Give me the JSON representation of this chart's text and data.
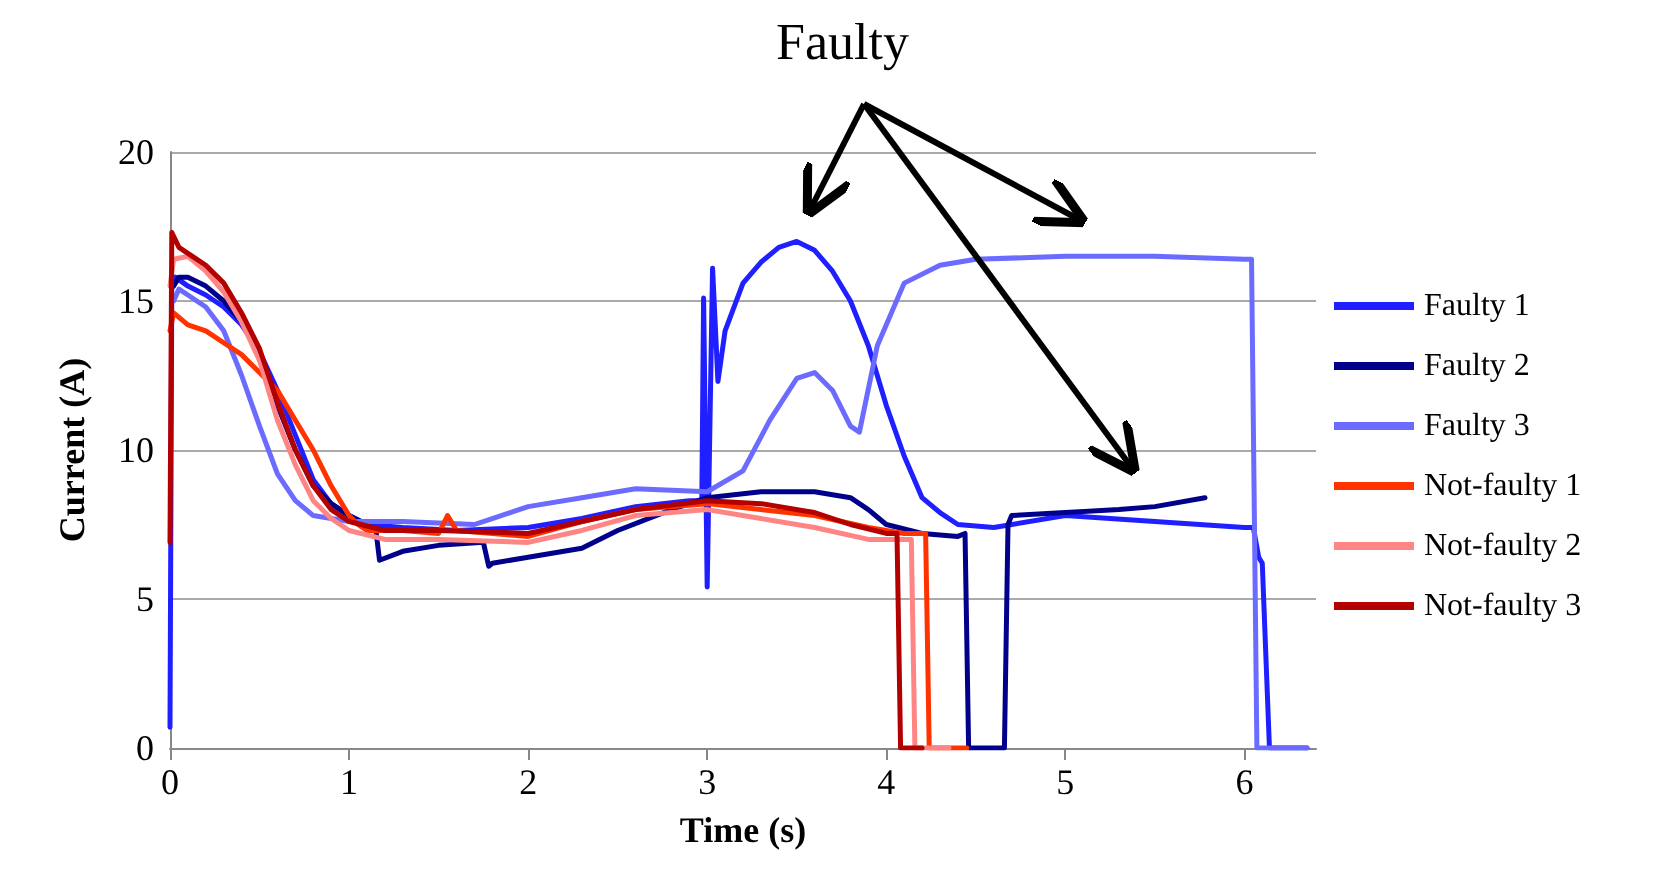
{
  "chart_data": {
    "type": "line",
    "xlabel": "Time (s)",
    "ylabel": "Current (A)",
    "annotations": [
      "Faulty"
    ],
    "xlim": [
      0,
      6.4
    ],
    "xticks": [
      0,
      1,
      2,
      3,
      4,
      5,
      6
    ],
    "ylim": [
      0,
      20
    ],
    "yticks": [
      0,
      5,
      10,
      15,
      20
    ],
    "grid": "y",
    "legend": "right",
    "marker": "none",
    "line_style": "solid",
    "series": [
      {
        "name": "Faulty 1",
        "color": "#1f1fff",
        "x": [
          0,
          0.01,
          0.03,
          0.1,
          0.2,
          0.3,
          0.4,
          0.5,
          0.6,
          0.7,
          0.8,
          0.9,
          1.0,
          1.1,
          1.3,
          1.6,
          2.0,
          2.3,
          2.6,
          2.9,
          2.97,
          2.98,
          3.0,
          3.03,
          3.06,
          3.1,
          3.2,
          3.3,
          3.4,
          3.5,
          3.6,
          3.7,
          3.8,
          3.9,
          4.0,
          4.1,
          4.2,
          4.3,
          4.4,
          4.6,
          5.0,
          5.5,
          6.0,
          6.05,
          6.08,
          6.1,
          6.14,
          6.2,
          6.35
        ],
        "values": [
          0.7,
          15.5,
          15.8,
          15.5,
          15.2,
          14.8,
          14.2,
          13.3,
          12,
          10.5,
          9,
          8.2,
          7.8,
          7.5,
          7.4,
          7.3,
          7.4,
          7.7,
          8.1,
          8.3,
          8.3,
          15.1,
          5.4,
          16.1,
          12.3,
          14,
          15.6,
          16.3,
          16.8,
          17,
          16.7,
          16,
          15,
          13.5,
          11.5,
          9.8,
          8.4,
          7.9,
          7.5,
          7.4,
          7.8,
          7.6,
          7.4,
          7.4,
          6.4,
          6.2,
          0,
          0,
          0
        ]
      },
      {
        "name": "Faulty 2",
        "color": "#00008b",
        "x": [
          0.02,
          0.05,
          0.1,
          0.2,
          0.3,
          0.4,
          0.5,
          0.6,
          0.7,
          0.8,
          0.9,
          1.0,
          1.1,
          1.15,
          1.17,
          1.3,
          1.5,
          1.75,
          1.78,
          1.8,
          2.0,
          2.3,
          2.5,
          2.8,
          3.0,
          3.3,
          3.6,
          3.8,
          3.9,
          4.0,
          4.2,
          4.4,
          4.44,
          4.46,
          4.66,
          4.68,
          4.7,
          5.0,
          5.3,
          5.5,
          5.78
        ],
        "values": [
          15.5,
          15.8,
          15.8,
          15.5,
          15,
          14.3,
          13.2,
          11.5,
          10,
          8.8,
          8.2,
          7.8,
          7.5,
          7.3,
          6.3,
          6.6,
          6.8,
          6.9,
          6.1,
          6.2,
          6.4,
          6.7,
          7.3,
          8,
          8.4,
          8.6,
          8.6,
          8.4,
          8,
          7.5,
          7.2,
          7.1,
          7.2,
          0,
          0,
          7.5,
          7.8,
          7.9,
          8,
          8.1,
          8.4
        ]
      },
      {
        "name": "Faulty 3",
        "color": "#6b6bff",
        "x": [
          0.02,
          0.05,
          0.1,
          0.2,
          0.3,
          0.4,
          0.5,
          0.6,
          0.7,
          0.8,
          1.0,
          1.3,
          1.7,
          1.8,
          2.0,
          2.3,
          2.6,
          3.0,
          3.2,
          3.35,
          3.5,
          3.6,
          3.7,
          3.8,
          3.85,
          3.95,
          4.1,
          4.3,
          4.5,
          5.0,
          5.5,
          6.0,
          6.04,
          6.07,
          6.2,
          6.35
        ],
        "values": [
          15,
          15.4,
          15.2,
          14.8,
          14,
          12.5,
          10.8,
          9.2,
          8.3,
          7.8,
          7.6,
          7.6,
          7.5,
          7.7,
          8.1,
          8.4,
          8.7,
          8.6,
          9.3,
          11,
          12.4,
          12.6,
          12,
          10.8,
          10.6,
          13.5,
          15.6,
          16.2,
          16.4,
          16.5,
          16.5,
          16.4,
          16.4,
          0,
          0,
          0
        ]
      },
      {
        "name": "Not-faulty 1",
        "color": "#ff3300",
        "x": [
          0,
          0.02,
          0.1,
          0.2,
          0.3,
          0.4,
          0.5,
          0.6,
          0.7,
          0.8,
          0.9,
          1.0,
          1.05,
          1.1,
          1.3,
          1.5,
          1.55,
          1.6,
          1.8,
          2.0,
          2.3,
          2.6,
          3.0,
          3.3,
          3.6,
          3.9,
          4.1,
          4.22,
          4.24,
          4.45
        ],
        "values": [
          14,
          14.6,
          14.2,
          14,
          13.6,
          13.2,
          12.6,
          12,
          11,
          10,
          8.8,
          7.8,
          7.5,
          7.3,
          7.3,
          7.2,
          7.8,
          7.3,
          7.2,
          7.1,
          7.6,
          8,
          8.2,
          8,
          7.8,
          7.4,
          7.2,
          7.2,
          0,
          0
        ]
      },
      {
        "name": "Not-faulty 2",
        "color": "#ff8585",
        "x": [
          0,
          0.02,
          0.1,
          0.2,
          0.3,
          0.4,
          0.5,
          0.6,
          0.7,
          0.8,
          0.9,
          1.0,
          1.2,
          1.5,
          2.0,
          2.3,
          2.6,
          3.0,
          3.3,
          3.6,
          3.9,
          4.1,
          4.14,
          4.16,
          4.35
        ],
        "values": [
          15.5,
          16.4,
          16.5,
          16,
          15.3,
          14.3,
          13,
          11,
          9.5,
          8.3,
          7.7,
          7.3,
          7.0,
          7.0,
          6.9,
          7.3,
          7.8,
          8.0,
          7.7,
          7.4,
          7.0,
          7.0,
          7.0,
          0,
          0
        ]
      },
      {
        "name": "Not-faulty 3",
        "color": "#b30000",
        "x": [
          0,
          0.01,
          0.05,
          0.1,
          0.2,
          0.3,
          0.4,
          0.5,
          0.6,
          0.7,
          0.8,
          0.9,
          1.0,
          1.2,
          1.5,
          2.0,
          2.3,
          2.6,
          3.0,
          3.3,
          3.6,
          3.8,
          4.0,
          4.06,
          4.08,
          4.2
        ],
        "values": [
          6.9,
          17.3,
          16.8,
          16.6,
          16.2,
          15.6,
          14.6,
          13.4,
          11.6,
          10,
          8.8,
          8.0,
          7.6,
          7.3,
          7.3,
          7.2,
          7.6,
          8.0,
          8.3,
          8.2,
          7.9,
          7.5,
          7.2,
          7.2,
          0,
          0
        ]
      }
    ]
  }
}
